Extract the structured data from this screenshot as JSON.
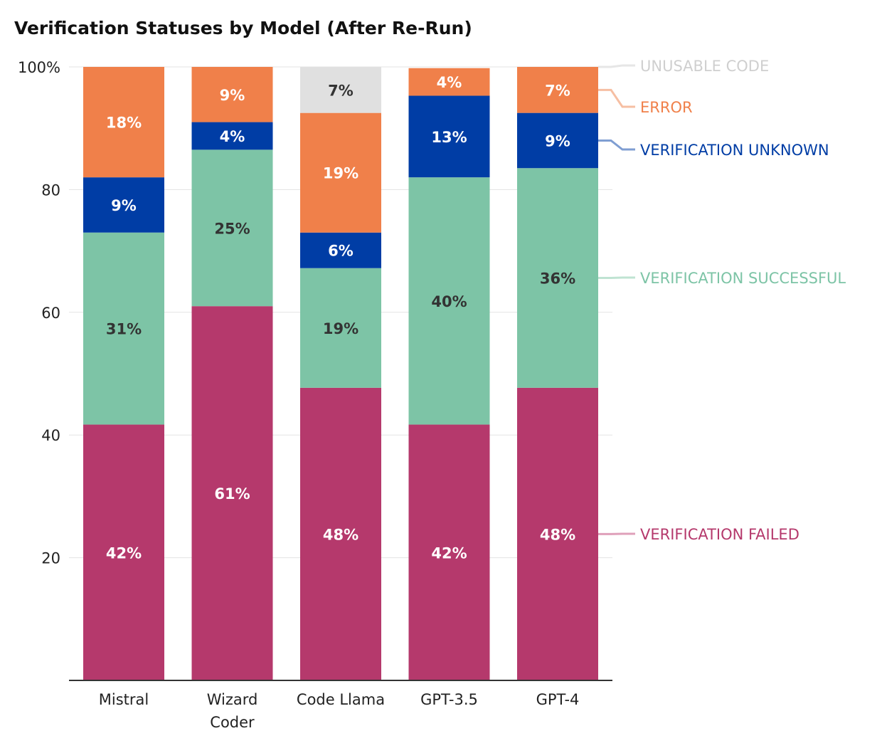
{
  "chart_data": {
    "type": "bar",
    "stacked": true,
    "title": "Verification Statuses by Model (After Re-Run)",
    "xlabel": "",
    "ylabel": "",
    "ylim": [
      0,
      100
    ],
    "yticks": [
      20,
      40,
      60,
      80,
      100
    ],
    "ytick_labels": [
      "20",
      "40",
      "60",
      "80",
      "100%"
    ],
    "grid": true,
    "legend_position": "right, inline labels",
    "categories": [
      "Mistral",
      "Wizard Coder",
      "Code Llama",
      "GPT-3.5",
      "GPT-4"
    ],
    "category_lines": [
      [
        "Mistral"
      ],
      [
        "Wizard",
        "Coder"
      ],
      [
        "Code Llama"
      ],
      [
        "GPT-3.5"
      ],
      [
        "GPT-4"
      ]
    ],
    "series": [
      {
        "name": "VERIFICATION FAILED",
        "color": "#b5396c",
        "label_color": "#ffffff",
        "legend_line": "#dfa0ba",
        "values": [
          41.7,
          61,
          47.7,
          41.7,
          47.7
        ],
        "labels": [
          "42%",
          "61%",
          "48%",
          "42%",
          "48%"
        ]
      },
      {
        "name": "VERIFICATION SUCCESSFUL",
        "color": "#7dc4a6",
        "label_color": "#333333",
        "legend_line": "#bfe3d2",
        "values": [
          31.3,
          25.5,
          19.5,
          40.3,
          35.8
        ],
        "labels": [
          "31%",
          "25%",
          "19%",
          "40%",
          "36%"
        ]
      },
      {
        "name": "VERIFICATION UNKNOWN",
        "color": "#003da5",
        "label_color": "#ffffff",
        "legend_line": "#7f9ed2",
        "values": [
          9,
          4.5,
          5.8,
          13.3,
          9
        ],
        "labels": [
          "9%",
          "4%",
          "6%",
          "13%",
          "9%"
        ]
      },
      {
        "name": "ERROR",
        "color": "#f0804a",
        "label_color": "#ffffff",
        "legend_line": "#f6bfa3",
        "values": [
          18,
          9,
          19.5,
          4.5,
          7.5
        ],
        "labels": [
          "18%",
          "9%",
          "19%",
          "4%",
          "7%"
        ]
      },
      {
        "name": "UNUSABLE CODE",
        "color": "#e0e0e0",
        "label_color": "#333333",
        "legend_line": "#e6e6e6",
        "values": [
          0,
          0,
          7.5,
          0,
          0
        ],
        "labels": [
          "",
          "",
          "7%",
          "",
          ""
        ]
      }
    ],
    "legend_colors": {
      "VERIFICATION FAILED": "#b5396c",
      "VERIFICATION SUCCESSFUL": "#7dc4a6",
      "VERIFICATION UNKNOWN": "#003da5",
      "ERROR": "#f0804a",
      "UNUSABLE CODE": "#cfcfcf"
    }
  }
}
